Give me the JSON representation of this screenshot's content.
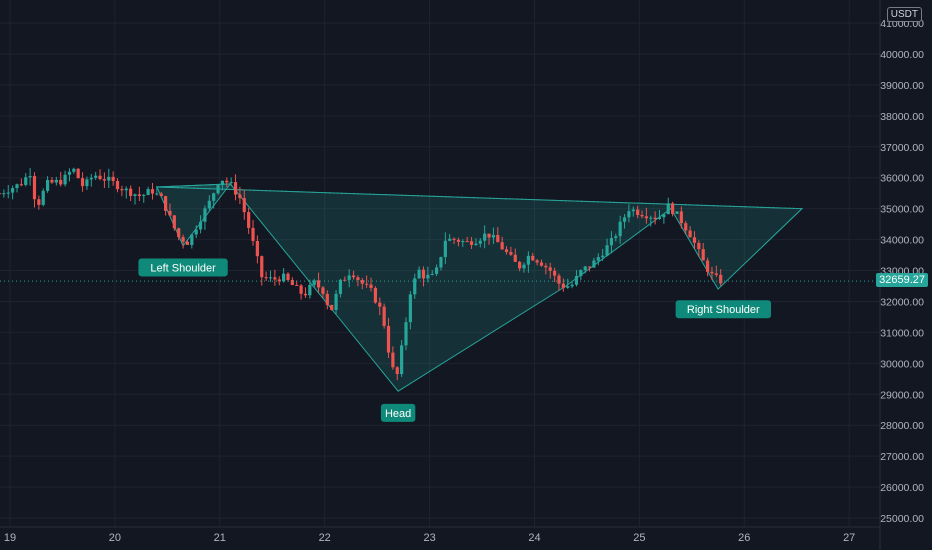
{
  "colors": {
    "background": "#131722",
    "grid": "#1f2330",
    "text": "#b2b5be",
    "up": "#26a69a",
    "down": "#ef5350",
    "pattern_fill": "#26a69a",
    "label_bg": "#0f8a7a"
  },
  "currency": "USDT",
  "last_price_label": "32659.27",
  "chart_data": {
    "type": "candlestick",
    "x_tick_labels": [
      "19",
      "20",
      "21",
      "22",
      "23",
      "24",
      "25",
      "26",
      "27"
    ],
    "y_tick_labels": [
      "25000.00",
      "26000.00",
      "27000.00",
      "28000.00",
      "29000.00",
      "30000.00",
      "31000.00",
      "32000.00",
      "33000.00",
      "34000.00",
      "35000.00",
      "36000.00",
      "37000.00",
      "38000.00",
      "39000.00",
      "40000.00",
      "41000.00"
    ],
    "ylim": [
      25000,
      41000
    ],
    "xlim": [
      18.9,
      27.3
    ],
    "last_price": 32659.27,
    "pattern_points": [
      {
        "x": 20.4,
        "y": 35700
      },
      {
        "x": 20.65,
        "y": 33800
      },
      {
        "x": 21.1,
        "y": 35800
      },
      {
        "x": 22.7,
        "y": 29100
      },
      {
        "x": 24.3,
        "y": 32500
      },
      {
        "x": 25.3,
        "y": 35000
      },
      {
        "x": 25.75,
        "y": 32400
      },
      {
        "x": 26.55,
        "y": 35000
      }
    ],
    "annotations": [
      {
        "text": "Left Shoulder",
        "x": 20.65,
        "y": 33100
      },
      {
        "text": "Head",
        "x": 22.7,
        "y": 28400
      },
      {
        "text": "Right Shoulder",
        "x": 25.8,
        "y": 31750
      }
    ],
    "keypoints": [
      [
        18.9,
        35500
      ],
      [
        19.1,
        35800
      ],
      [
        19.2,
        36200
      ],
      [
        19.25,
        35000
      ],
      [
        19.35,
        35800
      ],
      [
        19.5,
        35900
      ],
      [
        19.6,
        36300
      ],
      [
        19.7,
        35700
      ],
      [
        19.8,
        36100
      ],
      [
        19.95,
        35900
      ],
      [
        20.1,
        35600
      ],
      [
        20.25,
        35400
      ],
      [
        20.35,
        35600
      ],
      [
        20.45,
        35300
      ],
      [
        20.6,
        34100
      ],
      [
        20.7,
        33900
      ],
      [
        20.8,
        34600
      ],
      [
        20.9,
        35200
      ],
      [
        21.0,
        36000
      ],
      [
        21.1,
        35800
      ],
      [
        21.2,
        35300
      ],
      [
        21.3,
        34100
      ],
      [
        21.4,
        32800
      ],
      [
        21.5,
        32700
      ],
      [
        21.6,
        32800
      ],
      [
        21.7,
        32500
      ],
      [
        21.8,
        32200
      ],
      [
        21.9,
        32600
      ],
      [
        22.0,
        32300
      ],
      [
        22.05,
        31600
      ],
      [
        22.15,
        32600
      ],
      [
        22.25,
        33000
      ],
      [
        22.35,
        32600
      ],
      [
        22.45,
        32300
      ],
      [
        22.55,
        31600
      ],
      [
        22.62,
        30200
      ],
      [
        22.68,
        29400
      ],
      [
        22.75,
        30800
      ],
      [
        22.82,
        32400
      ],
      [
        22.9,
        33000
      ],
      [
        22.95,
        32800
      ],
      [
        23.05,
        32800
      ],
      [
        23.15,
        34000
      ],
      [
        23.25,
        34000
      ],
      [
        23.35,
        33900
      ],
      [
        23.45,
        34000
      ],
      [
        23.55,
        34200
      ],
      [
        23.65,
        33900
      ],
      [
        23.75,
        33500
      ],
      [
        23.85,
        33100
      ],
      [
        23.95,
        33500
      ],
      [
        24.05,
        33300
      ],
      [
        24.15,
        33000
      ],
      [
        24.25,
        32500
      ],
      [
        24.35,
        32500
      ],
      [
        24.45,
        33000
      ],
      [
        24.55,
        33200
      ],
      [
        24.65,
        33600
      ],
      [
        24.75,
        34000
      ],
      [
        24.82,
        34500
      ],
      [
        24.9,
        35000
      ],
      [
        24.98,
        34900
      ],
      [
        25.08,
        34800
      ],
      [
        25.18,
        34700
      ],
      [
        25.28,
        35100
      ],
      [
        25.38,
        34700
      ],
      [
        25.48,
        34200
      ],
      [
        25.55,
        33700
      ],
      [
        25.62,
        33200
      ],
      [
        25.7,
        32800
      ],
      [
        25.78,
        32659
      ]
    ]
  }
}
